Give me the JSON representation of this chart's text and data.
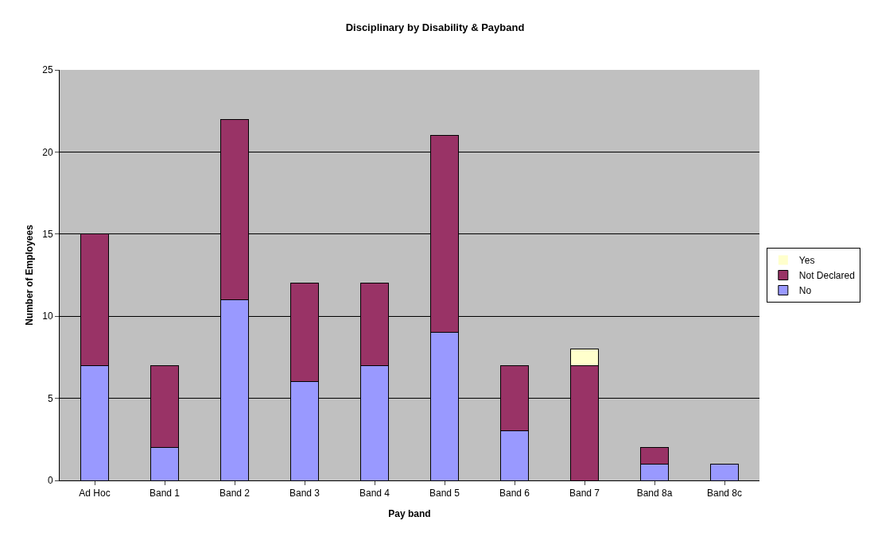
{
  "chart_data": {
    "type": "bar",
    "title": "Disciplinary by Disability & Payband",
    "xlabel": "Pay band",
    "ylabel": "Number of Employees",
    "categories": [
      "Ad Hoc",
      "Band 1",
      "Band 2",
      "Band 3",
      "Band 4",
      "Band 5",
      "Band 6",
      "Band 7",
      "Band 8a",
      "Band 8c"
    ],
    "series": [
      {
        "name": "No",
        "color": "#9999ff",
        "values": [
          7,
          2,
          11,
          6,
          7,
          9,
          3,
          0,
          1,
          1
        ]
      },
      {
        "name": "Not Declared",
        "color": "#993366",
        "values": [
          8,
          5,
          11,
          6,
          5,
          12,
          4,
          7,
          1,
          0
        ]
      },
      {
        "name": "Yes",
        "color": "#ffffcc",
        "values": [
          0,
          0,
          0,
          0,
          0,
          0,
          0,
          1,
          0,
          0
        ]
      }
    ],
    "stacked": true,
    "ylim": [
      0,
      25
    ],
    "yticks": [
      0,
      5,
      10,
      15,
      20,
      25
    ],
    "grid": "y",
    "legend": "right"
  }
}
